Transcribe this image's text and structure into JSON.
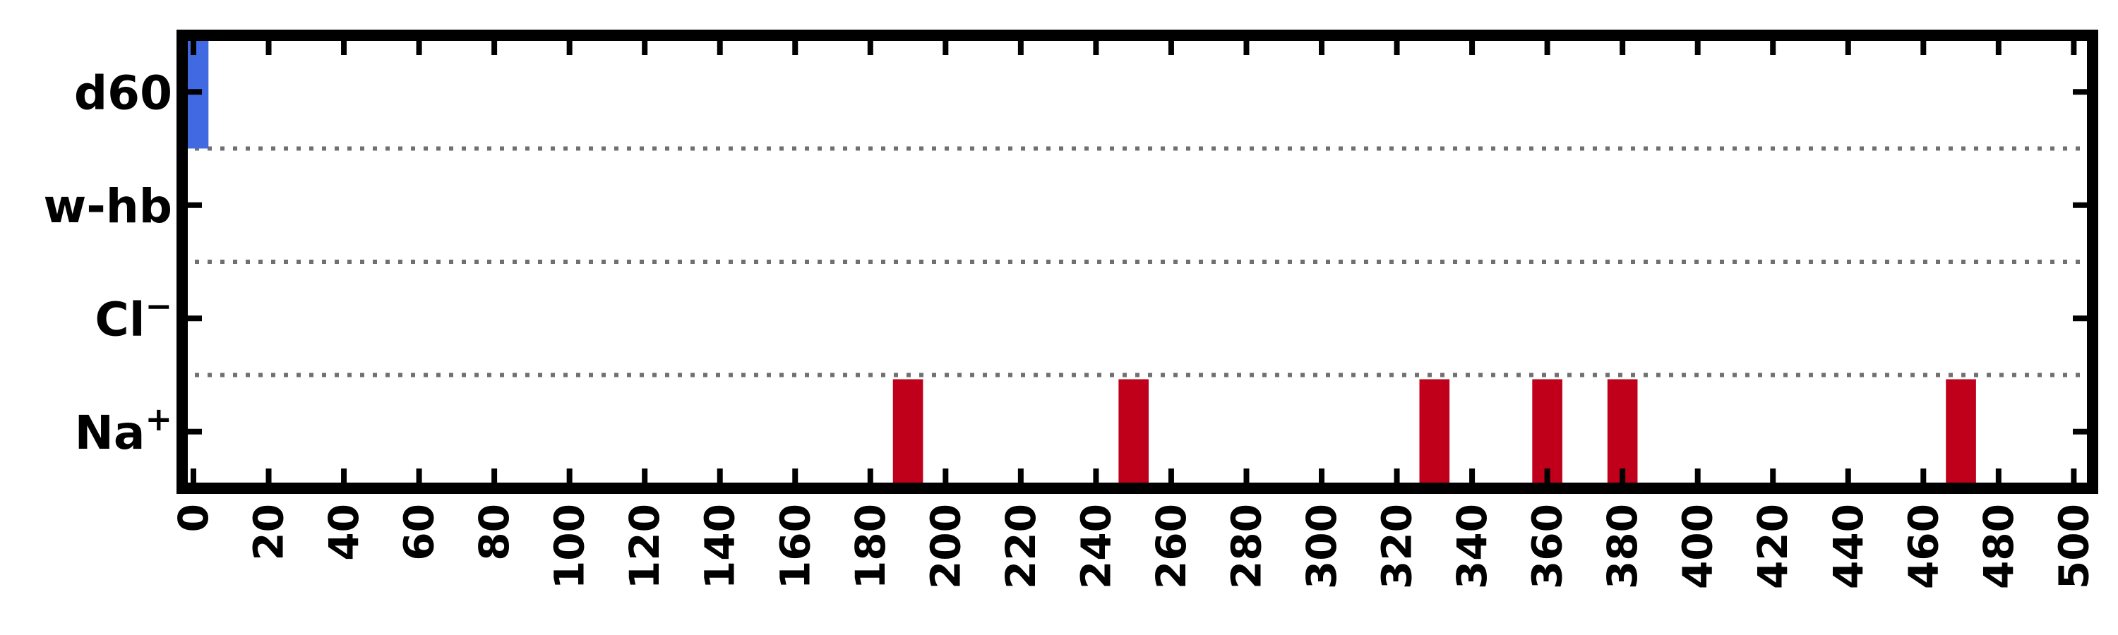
{
  "chart_data": {
    "type": "bar",
    "title": "",
    "xlabel": "",
    "ylabel": "",
    "xlim": [
      -3,
      505
    ],
    "xticks": [
      0,
      20,
      40,
      60,
      80,
      100,
      120,
      140,
      160,
      180,
      200,
      220,
      240,
      260,
      280,
      300,
      320,
      340,
      360,
      380,
      400,
      420,
      440,
      460,
      480,
      500
    ],
    "xtick_labels": [
      "0",
      "20",
      "40",
      "60",
      "80",
      "100",
      "120",
      "140",
      "160",
      "180",
      "200",
      "220",
      "240",
      "260",
      "280",
      "300",
      "320",
      "340",
      "360",
      "380",
      "400",
      "420",
      "440",
      "460",
      "480",
      "500"
    ],
    "rows": [
      {
        "label": "d60",
        "base": "d",
        "sup": "60",
        "supscript": false
      },
      {
        "label": "w-hb",
        "base": "w-hb",
        "sup": "",
        "supscript": false
      },
      {
        "label": "Cl−",
        "base": "Cl",
        "sup": "−",
        "supscript": true
      },
      {
        "label": "Na+",
        "base": "Na",
        "sup": "+",
        "supscript": true
      }
    ],
    "series": [
      {
        "name": "d60",
        "row": 0,
        "color": "#4169e1",
        "bars": [
          {
            "start": -3,
            "end": 4
          }
        ]
      },
      {
        "name": "Na+",
        "row": 3,
        "color": "#c0001a",
        "bars": [
          {
            "start": 186,
            "end": 194
          },
          {
            "start": 246,
            "end": 254
          },
          {
            "start": 326,
            "end": 334
          },
          {
            "start": 356,
            "end": 364
          },
          {
            "start": 376,
            "end": 384
          },
          {
            "start": 466,
            "end": 474
          }
        ]
      }
    ],
    "grid": "dotted row separators"
  }
}
